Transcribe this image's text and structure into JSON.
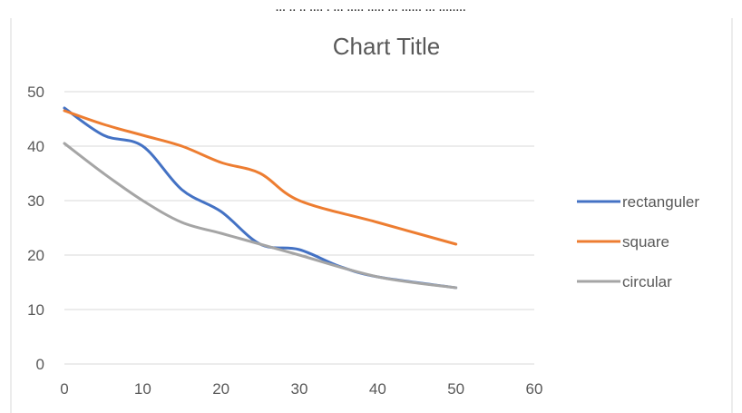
{
  "top_caption": "... .. .. .... . ... ..... ..... ... ...... ... ........",
  "chart_data": {
    "type": "line",
    "title": "Chart Title",
    "xlabel": "",
    "ylabel": "",
    "xlim": [
      0,
      60
    ],
    "ylim": [
      0,
      50
    ],
    "x_ticks": [
      0,
      10,
      20,
      30,
      40,
      50,
      60
    ],
    "y_ticks": [
      0,
      10,
      20,
      30,
      40,
      50
    ],
    "grid": true,
    "legend_position": "right",
    "smooth": true,
    "series": [
      {
        "name": "rectanguler",
        "color": "#4472C4",
        "points": [
          [
            0,
            47
          ],
          [
            5,
            42
          ],
          [
            10,
            40
          ],
          [
            15,
            32
          ],
          [
            20,
            28
          ],
          [
            25,
            22
          ],
          [
            30,
            21
          ],
          [
            35,
            18
          ],
          [
            40,
            16
          ],
          [
            50,
            14
          ]
        ]
      },
      {
        "name": "square",
        "color": "#ED7D31",
        "points": [
          [
            0,
            46.5
          ],
          [
            5,
            44
          ],
          [
            10,
            42
          ],
          [
            15,
            40
          ],
          [
            20,
            37
          ],
          [
            25,
            35
          ],
          [
            30,
            30
          ],
          [
            40,
            26
          ],
          [
            50,
            22
          ]
        ]
      },
      {
        "name": "circular",
        "color": "#A5A5A5",
        "points": [
          [
            0,
            40.5
          ],
          [
            5,
            35
          ],
          [
            10,
            30
          ],
          [
            15,
            26
          ],
          [
            20,
            24
          ],
          [
            25,
            22
          ],
          [
            30,
            20
          ],
          [
            40,
            16
          ],
          [
            50,
            14
          ]
        ]
      }
    ]
  }
}
